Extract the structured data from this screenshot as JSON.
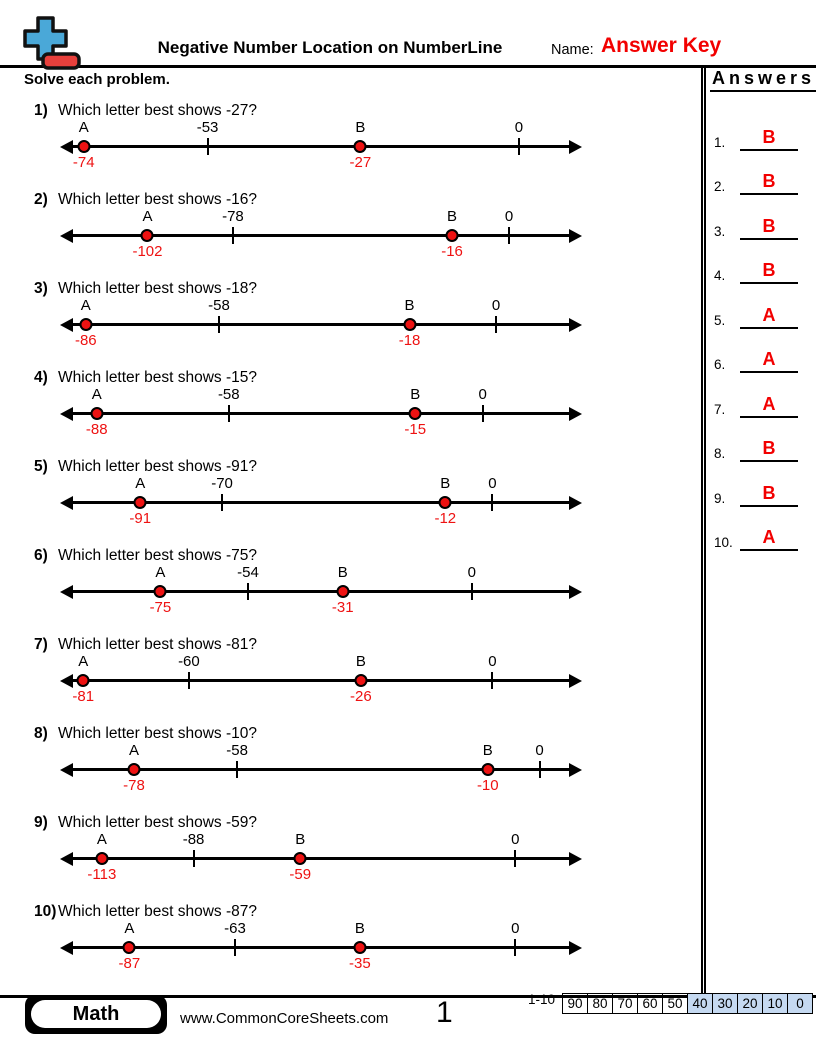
{
  "header": {
    "title": "Negative Number Location on NumberLine",
    "name_label": "Name:",
    "name_value": "Answer Key",
    "instructions": "Solve each problem."
  },
  "colors": {
    "accent_red": "#ee1212",
    "answer_key_red": "#f20000",
    "icon_blue": "#4aa8d8",
    "icon_red": "#e8403c",
    "score_shade_blue": "#c5d9f1"
  },
  "problems": [
    {
      "num": "1)",
      "question": "Which letter best shows -27?",
      "a_label": "A",
      "a_value": "-74",
      "a_pos": 4.2,
      "b_label": "B",
      "b_value": "-27",
      "b_pos": 57.6,
      "tick_label": "-53",
      "tick_pos": 28.1,
      "zero_label": "0",
      "zero_pos": 88.2
    },
    {
      "num": "2)",
      "question": "Which letter best shows -16?",
      "a_label": "A",
      "a_value": "-102",
      "a_pos": 16.5,
      "b_label": "B",
      "b_value": "-16",
      "b_pos": 75.3,
      "tick_label": "-78",
      "tick_pos": 33.0,
      "zero_label": "0",
      "zero_pos": 86.3
    },
    {
      "num": "3)",
      "question": "Which letter best shows -18?",
      "a_label": "A",
      "a_value": "-86",
      "a_pos": 4.6,
      "b_label": "B",
      "b_value": "-18",
      "b_pos": 67.1,
      "tick_label": "-58",
      "tick_pos": 30.3,
      "zero_label": "0",
      "zero_pos": 83.8
    },
    {
      "num": "4)",
      "question": "Which letter best shows -15?",
      "a_label": "A",
      "a_value": "-88",
      "a_pos": 6.7,
      "b_label": "B",
      "b_value": "-15",
      "b_pos": 68.2,
      "tick_label": "-58",
      "tick_pos": 32.2,
      "zero_label": "0",
      "zero_pos": 81.2
    },
    {
      "num": "5)",
      "question": "Which letter best shows -91?",
      "a_label": "A",
      "a_value": "-91",
      "a_pos": 15.1,
      "b_label": "B",
      "b_value": "-12",
      "b_pos": 74.0,
      "tick_label": "-70",
      "tick_pos": 30.9,
      "zero_label": "0",
      "zero_pos": 83.1
    },
    {
      "num": "6)",
      "question": "Which letter best shows -75?",
      "a_label": "A",
      "a_value": "-75",
      "a_pos": 19.0,
      "b_label": "B",
      "b_value": "-31",
      "b_pos": 54.2,
      "tick_label": "-54",
      "tick_pos": 35.9,
      "zero_label": "0",
      "zero_pos": 79.1
    },
    {
      "num": "7)",
      "question": "Which letter best shows -81?",
      "a_label": "A",
      "a_value": "-81",
      "a_pos": 4.1,
      "b_label": "B",
      "b_value": "-26",
      "b_pos": 57.7,
      "tick_label": "-60",
      "tick_pos": 24.5,
      "zero_label": "0",
      "zero_pos": 83.1
    },
    {
      "num": "8)",
      "question": "Which letter best shows -10?",
      "a_label": "A",
      "a_value": "-78",
      "a_pos": 13.9,
      "b_label": "B",
      "b_value": "-10",
      "b_pos": 82.2,
      "tick_label": "-58",
      "tick_pos": 33.8,
      "zero_label": "0",
      "zero_pos": 92.2
    },
    {
      "num": "9)",
      "question": "Which letter best shows -59?",
      "a_label": "A",
      "a_value": "-113",
      "a_pos": 7.7,
      "b_label": "B",
      "b_value": "-59",
      "b_pos": 46.0,
      "tick_label": "-88",
      "tick_pos": 25.4,
      "zero_label": "0",
      "zero_pos": 87.5
    },
    {
      "num": "10)",
      "question": "Which letter best shows -87?",
      "a_label": "A",
      "a_value": "-87",
      "a_pos": 13.0,
      "b_label": "B",
      "b_value": "-35",
      "b_pos": 57.5,
      "tick_label": "-63",
      "tick_pos": 33.4,
      "zero_label": "0",
      "zero_pos": 87.5
    }
  ],
  "answers_panel": {
    "title": "Answers",
    "items": [
      {
        "num": "1.",
        "value": "B"
      },
      {
        "num": "2.",
        "value": "B"
      },
      {
        "num": "3.",
        "value": "B"
      },
      {
        "num": "4.",
        "value": "B"
      },
      {
        "num": "5.",
        "value": "A"
      },
      {
        "num": "6.",
        "value": "A"
      },
      {
        "num": "7.",
        "value": "A"
      },
      {
        "num": "8.",
        "value": "B"
      },
      {
        "num": "9.",
        "value": "B"
      },
      {
        "num": "10.",
        "value": "A"
      }
    ]
  },
  "footer": {
    "subject": "Math",
    "website": "www.CommonCoreSheets.com",
    "page_number": "1",
    "range_label": "1-10",
    "scores": [
      {
        "label": "90",
        "shaded": false
      },
      {
        "label": "80",
        "shaded": false
      },
      {
        "label": "70",
        "shaded": false
      },
      {
        "label": "60",
        "shaded": false
      },
      {
        "label": "50",
        "shaded": false
      },
      {
        "label": "40",
        "shaded": true
      },
      {
        "label": "30",
        "shaded": true
      },
      {
        "label": "20",
        "shaded": true
      },
      {
        "label": "10",
        "shaded": true
      },
      {
        "label": "0",
        "shaded": true
      }
    ]
  }
}
